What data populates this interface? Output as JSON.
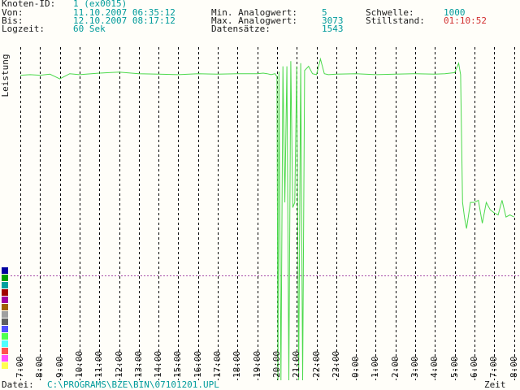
{
  "info": {
    "knoten_label": "Knoten-ID:",
    "knoten_value": "1 (ex0015)",
    "von_label": "Von:",
    "von_value": "11.10.2007 06:35:12",
    "bis_label": "Bis:",
    "bis_value": "12.10.2007 08:17:12",
    "logzeit_label": "Logzeit:",
    "logzeit_value": "60 Sek",
    "min_label": "Min. Analogwert:",
    "min_value": "5",
    "max_label": "Max. Analogwert:",
    "max_value": "3073",
    "datensaetze_label": "Datensätze:",
    "datensaetze_value": "1543",
    "schwelle_label": "Schwelle:",
    "schwelle_value": "1000",
    "stillstand_label": "Stillstand:",
    "stillstand_value": "01:10:52"
  },
  "chart": {
    "ylabel": "Leistung",
    "xlabel": "Zeit",
    "hour_ticks": [
      "7:00",
      "8:00",
      "9:00",
      "10:00",
      "11:00",
      "12:00",
      "13:00",
      "14:00",
      "15:00",
      "16:00",
      "17:00",
      "18:00",
      "19:00",
      "20:00",
      "21:00",
      "22:00",
      "23:00",
      "0:00",
      "1:00",
      "2:00",
      "3:00",
      "4:00",
      "5:00",
      "6:00",
      "7:00",
      "8:00"
    ]
  },
  "footer": {
    "datei_label": "Datei:",
    "datei_value": "C:\\PROGRAMS\\BZE\\BIN\\07101201.UPL"
  },
  "colors": {
    "signal": "#4cd94c",
    "threshold": "#a64ca6",
    "grid": "#000000",
    "value_text": "#009b9b",
    "alert_text": "#d23030"
  },
  "legend_colors": [
    "#0000a0",
    "#00a000",
    "#00a0a0",
    "#a00000",
    "#a000a0",
    "#a06000",
    "#a0a0a0",
    "#606060",
    "#5050ff",
    "#50ff50",
    "#50ffff",
    "#ff5050",
    "#ff50ff",
    "#ffff50"
  ],
  "chart_data": {
    "type": "line",
    "xlabel": "Zeit",
    "ylabel": "Leistung",
    "x_ticks": [
      "7:00",
      "8:00",
      "9:00",
      "10:00",
      "11:00",
      "12:00",
      "13:00",
      "14:00",
      "15:00",
      "16:00",
      "17:00",
      "18:00",
      "19:00",
      "20:00",
      "21:00",
      "22:00",
      "23:00",
      "0:00",
      "1:00",
      "2:00",
      "3:00",
      "4:00",
      "5:00",
      "6:00",
      "7:00",
      "8:00"
    ],
    "ylim": [
      0,
      3073
    ],
    "threshold": 1000,
    "series": [
      {
        "x": [
          0,
          0.5,
          1,
          1.5,
          2,
          2.5,
          3,
          4,
          5,
          6,
          7,
          8,
          9,
          10,
          11,
          12,
          12.3,
          12.5,
          12.7,
          12.9,
          13.0,
          13.05,
          13.1,
          13.2,
          13.3,
          13.4,
          13.5,
          13.6,
          13.7,
          13.8,
          13.9,
          14.0,
          14.1,
          14.2,
          14.3,
          14.4,
          14.6,
          14.8,
          15.0,
          15.2,
          15.4,
          15.6,
          16,
          17,
          18,
          19,
          20,
          21,
          21.5,
          22.0,
          22.2,
          22.3,
          22.4,
          22.5,
          22.6,
          22.8,
          23.0,
          23.2,
          23.4,
          23.6,
          23.8,
          24.0,
          24.2,
          24.4,
          24.6,
          24.8,
          25.0
        ],
        "y": [
          2915,
          2920,
          2915,
          2925,
          2880,
          2930,
          2920,
          2935,
          2945,
          2930,
          2925,
          2920,
          2930,
          2925,
          2930,
          2930,
          2935,
          2930,
          2920,
          2930,
          2900,
          0,
          2950,
          0,
          3000,
          1700,
          3000,
          0,
          3050,
          1650,
          1700,
          3000,
          0,
          3030,
          0,
          2960,
          3000,
          2930,
          2920,
          3070,
          2930,
          2920,
          2925,
          2930,
          2920,
          2925,
          2930,
          2925,
          2930,
          2940,
          3030,
          2920,
          1700,
          1550,
          1450,
          1700,
          1700,
          1720,
          1500,
          1700,
          1630,
          1600,
          1580,
          1720,
          1560,
          1580,
          1560
        ]
      }
    ]
  }
}
